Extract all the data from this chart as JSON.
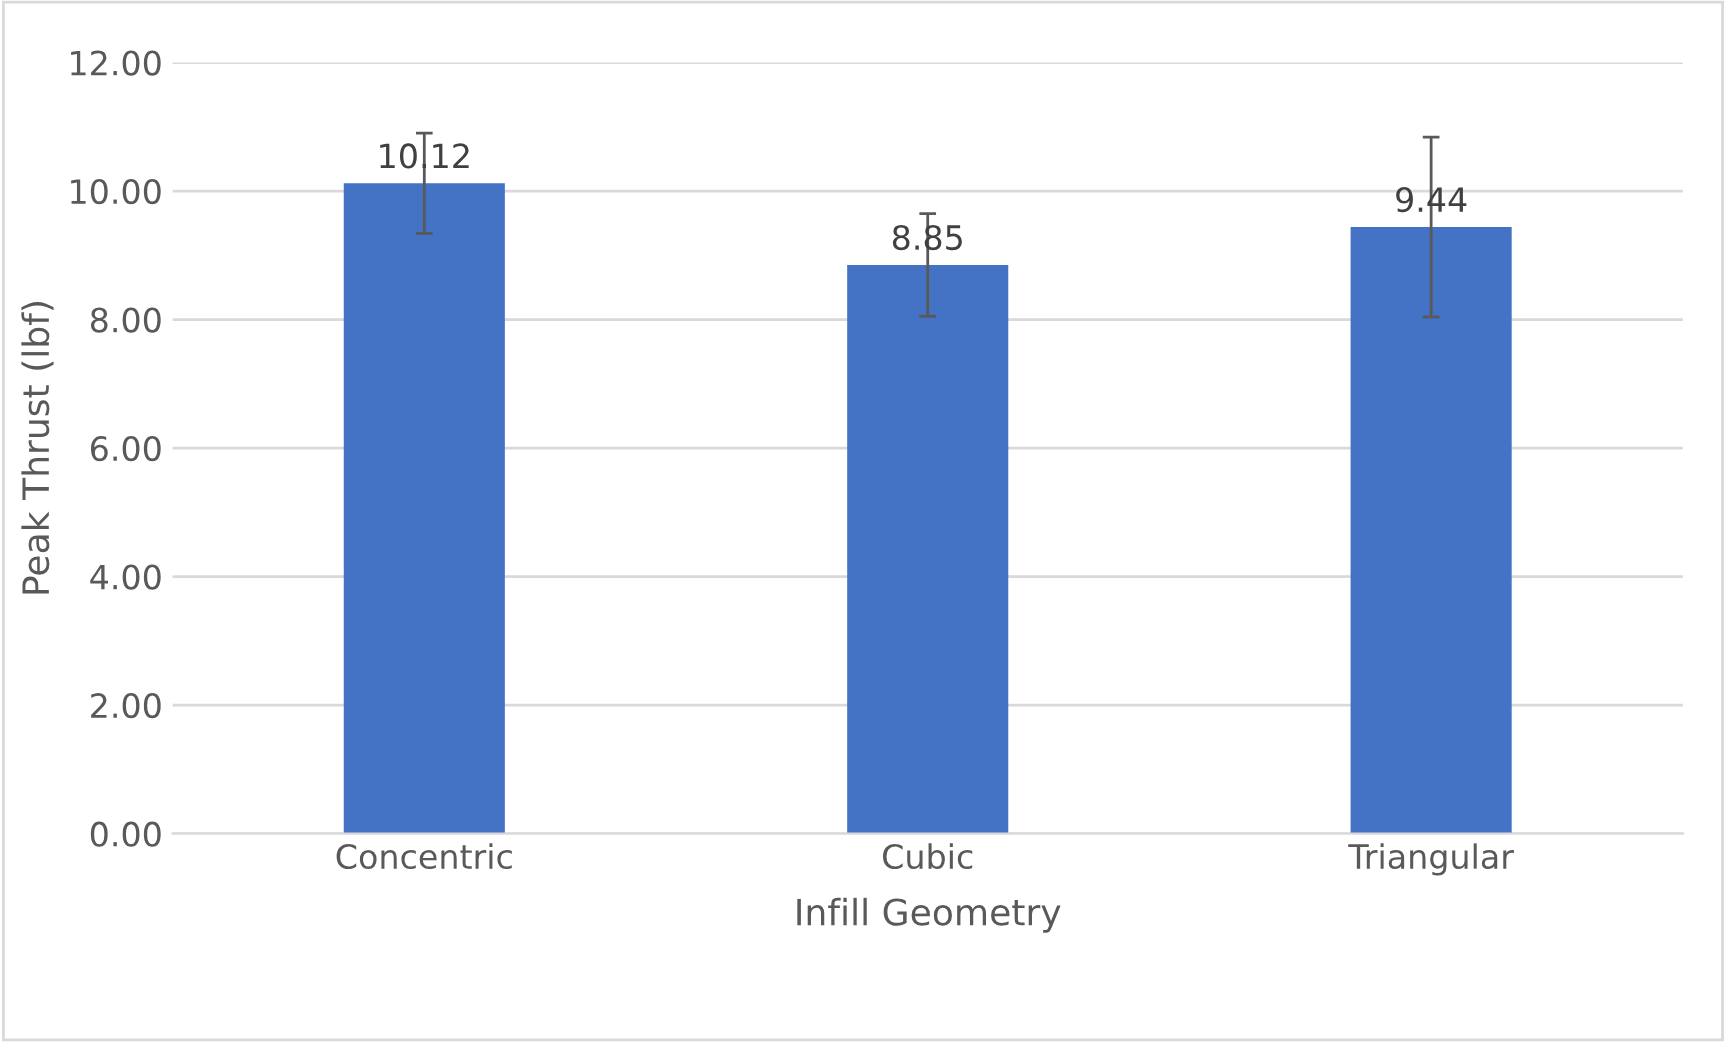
{
  "chart_data": {
    "type": "bar",
    "xlabel": "Infill Geometry",
    "ylabel": "Peak Thrust (lbf)",
    "categories": [
      "Concentric",
      "Cubic",
      "Triangular"
    ],
    "series": [
      {
        "color": "#4472c4",
        "values": [
          10.12,
          8.85,
          9.44
        ],
        "errors": [
          0.78,
          0.8,
          1.4
        ]
      }
    ],
    "data_labels": true,
    "ylim": [
      0,
      12
    ],
    "yticks": [
      {
        "value": 0,
        "label": "0.00"
      },
      {
        "value": 2,
        "label": "2.00"
      },
      {
        "value": 4,
        "label": "4.00"
      },
      {
        "value": 6,
        "label": "6.00"
      },
      {
        "value": 8,
        "label": "8.00"
      },
      {
        "value": 10,
        "label": "10.00"
      },
      {
        "value": 12,
        "label": "12.00"
      }
    ],
    "grid": "y"
  }
}
